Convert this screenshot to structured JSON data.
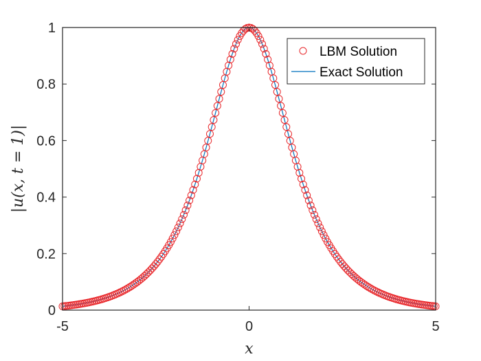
{
  "chart_data": {
    "type": "line",
    "xlabel": "x",
    "ylabel": "|u(x, t = 1)|",
    "xlim": [
      -5,
      5
    ],
    "ylim": [
      0,
      1
    ],
    "xticks": [
      "-5",
      "0",
      "5"
    ],
    "yticks": [
      "0",
      "0.2",
      "0.4",
      "0.6",
      "0.8",
      "1"
    ],
    "grid": false,
    "legend_position": "top-right",
    "series": [
      {
        "name": "LBM Solution",
        "style": "markers",
        "marker": "circle",
        "color": "#e8262a",
        "x_start": -5,
        "x_end": 5,
        "points": 201,
        "profile": "sech(x)"
      },
      {
        "name": "Exact Solution",
        "style": "line",
        "color": "#0072bd",
        "x_start": -5,
        "x_end": 5,
        "profile": "sech(x)"
      }
    ]
  }
}
